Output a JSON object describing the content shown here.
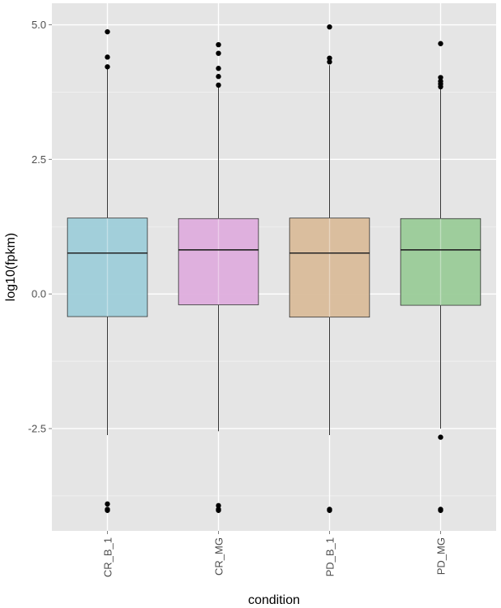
{
  "chart_data": {
    "type": "boxplot",
    "xlabel": "condition",
    "ylabel": "log10(fpkm)",
    "ylim": [
      -4.4,
      5.4
    ],
    "yticks": [
      -2.5,
      0.0,
      2.5,
      5.0
    ],
    "ytick_labels": [
      "-2.5",
      "0.0",
      "2.5",
      "5.0"
    ],
    "grid": true,
    "x_tick_rotation": "vertical",
    "categories": [
      "CR_B_1",
      "CR_MG",
      "PD_B_1",
      "PD_MG"
    ],
    "boxes": [
      {
        "category": "CR_B_1",
        "q1": -0.42,
        "median": 0.76,
        "q3": 1.41,
        "whisker_low": -2.62,
        "whisker_high": 4.2,
        "outliers_high": [
          4.87,
          4.4,
          4.22
        ],
        "outliers_low": [
          -3.9,
          -4.0,
          -4.02
        ],
        "color": "#9ecdd9"
      },
      {
        "category": "CR_MG",
        "q1": -0.2,
        "median": 0.82,
        "q3": 1.4,
        "whisker_low": -2.55,
        "whisker_high": 3.88,
        "outliers_high": [
          4.63,
          4.47,
          4.19,
          4.04,
          3.88
        ],
        "outliers_low": [
          -3.93,
          -4.0,
          -4.02
        ],
        "color": "#deaddd"
      },
      {
        "category": "PD_B_1",
        "q1": -0.43,
        "median": 0.76,
        "q3": 1.41,
        "whisker_low": -2.62,
        "whisker_high": 4.25,
        "outliers_high": [
          4.96,
          4.38,
          4.31
        ],
        "outliers_low": [
          -4.0,
          -4.02
        ],
        "color": "#d9bc9a"
      },
      {
        "category": "PD_MG",
        "q1": -0.21,
        "median": 0.82,
        "q3": 1.4,
        "whisker_low": -2.5,
        "whisker_high": 3.84,
        "outliers_high": [
          4.65,
          4.02,
          3.95,
          3.9,
          3.85
        ],
        "outliers_low": [
          -2.66,
          -4.0,
          -4.02
        ],
        "color": "#9acb98"
      }
    ]
  }
}
